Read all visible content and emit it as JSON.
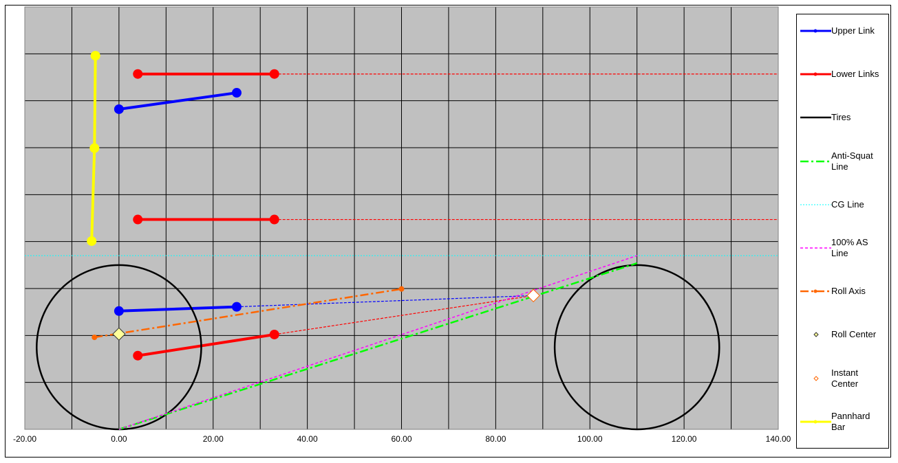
{
  "chart_data": {
    "type": "scatter",
    "xlim": [
      -20,
      140
    ],
    "ylim": [
      0,
      90
    ],
    "xticks": [
      {
        "value": -20,
        "label": "-20.00"
      },
      {
        "value": 0,
        "label": "0.00"
      },
      {
        "value": 20,
        "label": "20.00"
      },
      {
        "value": 40,
        "label": "40.00"
      },
      {
        "value": 60,
        "label": "60.00"
      },
      {
        "value": 80,
        "label": "80.00"
      },
      {
        "value": 100,
        "label": "100.00"
      },
      {
        "value": 120,
        "label": "120.00"
      },
      {
        "value": 140,
        "label": "140.00"
      }
    ],
    "x_gridlines": [
      -20,
      -10,
      0,
      10,
      20,
      30,
      40,
      50,
      60,
      70,
      80,
      90,
      100,
      110,
      120,
      130,
      140
    ],
    "y_gridlines": [
      0,
      10,
      20,
      30,
      40,
      50,
      60,
      70,
      80,
      90
    ],
    "plot_background": "#c0c0c0",
    "grid_color": "#000000",
    "series": [
      {
        "name": "Upper Link",
        "color": "#0000ff",
        "style": "solid",
        "width": 4,
        "marker": "circle",
        "x": [
          0,
          25,
          null,
          0,
          25
        ],
        "y": [
          68.2,
          71.7,
          null,
          25.2,
          26.1
        ],
        "projections": [
          {
            "x": [
              25,
              88
            ],
            "y": [
              26.1,
              28.5
            ]
          }
        ]
      },
      {
        "name": "Lower Links",
        "color": "#ff0000",
        "style": "solid",
        "width": 4,
        "marker": "circle",
        "x": [
          4,
          33,
          null,
          4,
          33,
          null,
          4,
          33
        ],
        "y": [
          75.7,
          75.7,
          null,
          44.7,
          44.7,
          null,
          15.7,
          20.2
        ],
        "projections": [
          {
            "x": [
              33,
              140
            ],
            "y": [
              75.7,
              75.7
            ]
          },
          {
            "x": [
              33,
              140
            ],
            "y": [
              44.7,
              44.7
            ]
          },
          {
            "x": [
              33,
              88
            ],
            "y": [
              20.2,
              28.5
            ]
          }
        ]
      },
      {
        "name": "Tires",
        "color": "#000000",
        "style": "solid",
        "width": 2.5,
        "circles": [
          {
            "x": 0,
            "y": 17.5,
            "r": 17.5
          },
          {
            "x": 110,
            "y": 17.5,
            "r": 17.5
          }
        ]
      },
      {
        "name": "Anti-Squat Line",
        "color": "#00ff00",
        "style": "dashdot",
        "width": 2.5,
        "x": [
          0,
          110
        ],
        "y": [
          0,
          35.4
        ]
      },
      {
        "name": "CG Line",
        "color": "#00ffff",
        "style": "dot",
        "width": 1,
        "x": [
          -20,
          140
        ],
        "y": [
          37,
          37
        ]
      },
      {
        "name": "100% AS Line",
        "color": "#ff00ff",
        "style": "dash",
        "width": 1.5,
        "x": [
          0,
          110
        ],
        "y": [
          0,
          37
        ]
      },
      {
        "name": "Roll Axis",
        "color": "#ff6600",
        "style": "dashdot",
        "width": 2.5,
        "marker": "dot",
        "x": [
          -5.2,
          60
        ],
        "y": [
          19.6,
          29.9
        ]
      },
      {
        "name": "Roll Center",
        "color": "#333333",
        "fill": "#ffff99",
        "style": "none",
        "marker": "diamond",
        "x": [
          0
        ],
        "y": [
          20.3
        ]
      },
      {
        "name": "Instant Center",
        "color": "#ff6600",
        "fill": "#ffffff",
        "style": "none",
        "marker": "diamond",
        "x": [
          88
        ],
        "y": [
          28.5
        ]
      },
      {
        "name": "Pannhard Bar",
        "color": "#ffff00",
        "style": "solid",
        "width": 4,
        "marker": "circle",
        "x": [
          -5,
          -5.2,
          -5.8
        ],
        "y": [
          79.6,
          59.9,
          40.1
        ]
      }
    ]
  }
}
